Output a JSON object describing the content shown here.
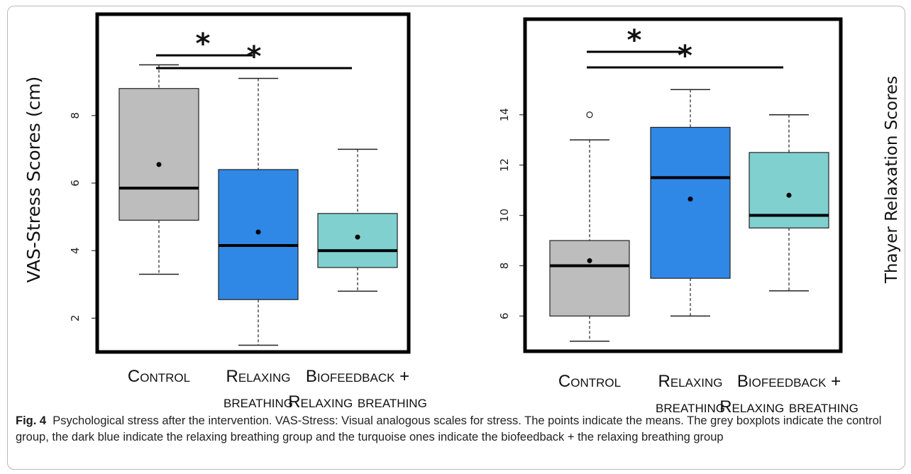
{
  "colors": {
    "control": "#bdbdbd",
    "relaxing": "#2f88e6",
    "biofeedback": "#80d0d0"
  },
  "chart_data": [
    {
      "type": "box",
      "ylabel": "VAS-Stress Scores (cm)",
      "ylim": [
        1.0,
        11.0
      ],
      "yticks": [
        2,
        4,
        6,
        8
      ],
      "categories": [
        {
          "lines": [
            "Control"
          ]
        },
        {
          "lines": [
            "Relaxing",
            "breathing"
          ]
        },
        {
          "lines": [
            "Biofeedback +",
            "Relaxing breathing"
          ]
        }
      ],
      "boxes": [
        {
          "group": "control",
          "whisker_low": 3.3,
          "q1": 4.9,
          "median": 5.85,
          "q3": 8.8,
          "whisker_high": 9.5,
          "mean": 6.55,
          "outliers": []
        },
        {
          "group": "relaxing",
          "whisker_low": 1.2,
          "q1": 2.55,
          "median": 4.15,
          "q3": 6.4,
          "whisker_high": 9.1,
          "mean": 4.55,
          "outliers": []
        },
        {
          "group": "biofeedback",
          "whisker_low": 2.8,
          "q1": 3.5,
          "median": 4.0,
          "q3": 5.1,
          "whisker_high": 7.0,
          "mean": 4.4,
          "outliers": []
        }
      ],
      "significance": [
        {
          "from": 0,
          "to": 1,
          "label": "*"
        },
        {
          "from": 0,
          "to": 2,
          "label": "*"
        }
      ]
    },
    {
      "type": "box",
      "ylabel": "Thayer Relaxation Scores",
      "ylim": [
        4.6,
        17.8
      ],
      "yticks": [
        6,
        8,
        10,
        12,
        14
      ],
      "categories": [
        {
          "lines": [
            "Control"
          ]
        },
        {
          "lines": [
            "Relaxing",
            "breathing"
          ]
        },
        {
          "lines": [
            "Biofeedback +",
            "Relaxing breathing"
          ]
        }
      ],
      "boxes": [
        {
          "group": "control",
          "whisker_low": 5.0,
          "q1": 6.0,
          "median": 8.0,
          "q3": 9.0,
          "whisker_high": 13.0,
          "mean": 8.2,
          "outliers": [
            14.0
          ]
        },
        {
          "group": "relaxing",
          "whisker_low": 6.0,
          "q1": 7.5,
          "median": 11.5,
          "q3": 13.5,
          "whisker_high": 15.0,
          "mean": 10.65,
          "outliers": []
        },
        {
          "group": "biofeedback",
          "whisker_low": 7.0,
          "q1": 9.5,
          "median": 10.0,
          "q3": 12.5,
          "whisker_high": 14.0,
          "mean": 10.8,
          "outliers": []
        }
      ],
      "significance": [
        {
          "from": 0,
          "to": 1,
          "label": "*"
        },
        {
          "from": 0,
          "to": 2,
          "label": "*"
        }
      ]
    }
  ],
  "caption": {
    "label": "Fig. 4",
    "text": "Psychological stress after the intervention. VAS-Stress: Visual analogous scales for stress. The points indicate the means. The grey boxplots indicate the control group, the dark blue indicate the relaxing breathing group and the turquoise ones indicate the biofeedback + the relaxing breathing group"
  }
}
